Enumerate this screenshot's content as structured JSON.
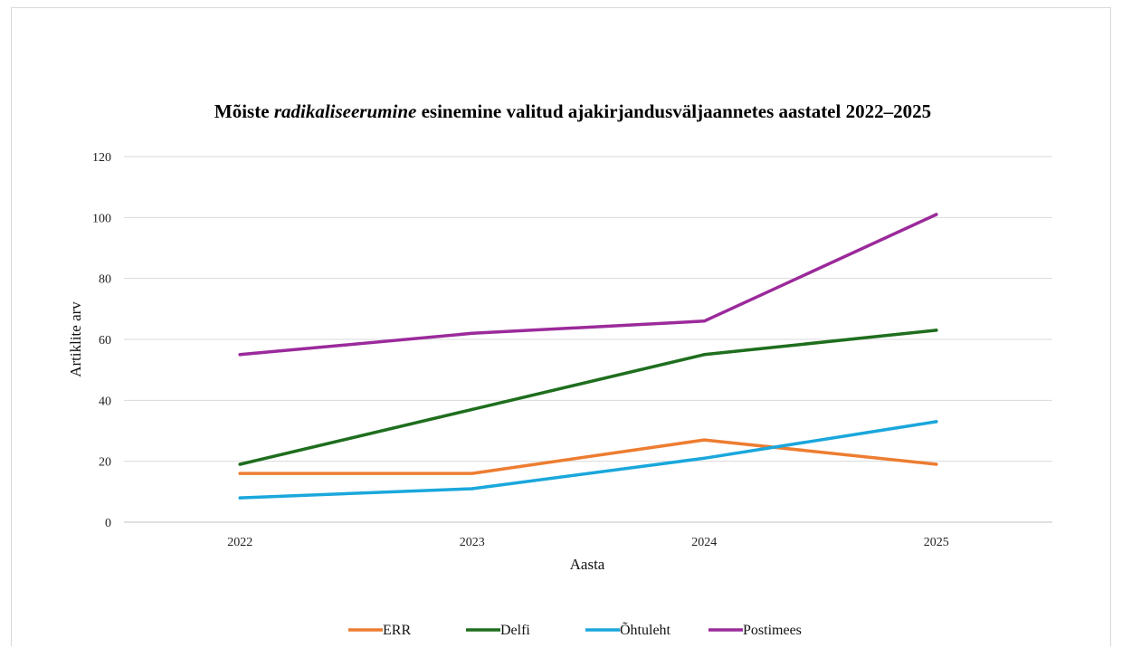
{
  "chart_data": {
    "type": "line",
    "title_parts": {
      "before": "Mõiste ",
      "emphasis": "radikaliseerumine",
      "after": " esinemine valitud ajakirjandusväljaannetes aastatel 2022–2025"
    },
    "xlabel": "Aasta",
    "ylabel": "Artiklite arv",
    "categories": [
      "2022",
      "2023",
      "2024",
      "2025"
    ],
    "ylim": [
      0,
      120
    ],
    "yticks": [
      0,
      20,
      40,
      60,
      80,
      100,
      120
    ],
    "grid": true,
    "legend_position": "bottom",
    "series": [
      {
        "name": "ERR",
        "color": "#ED7D31",
        "values": [
          16,
          16,
          27,
          19
        ]
      },
      {
        "name": "Delfi",
        "color": "#1E6E1E",
        "values": [
          19,
          37,
          55,
          63
        ]
      },
      {
        "name": "Õhtuleht",
        "color": "#1AA7DC",
        "values": [
          8,
          11,
          21,
          33
        ]
      },
      {
        "name": "Postimees",
        "color": "#9B2A9B",
        "values": [
          55,
          62,
          66,
          101
        ]
      }
    ]
  }
}
